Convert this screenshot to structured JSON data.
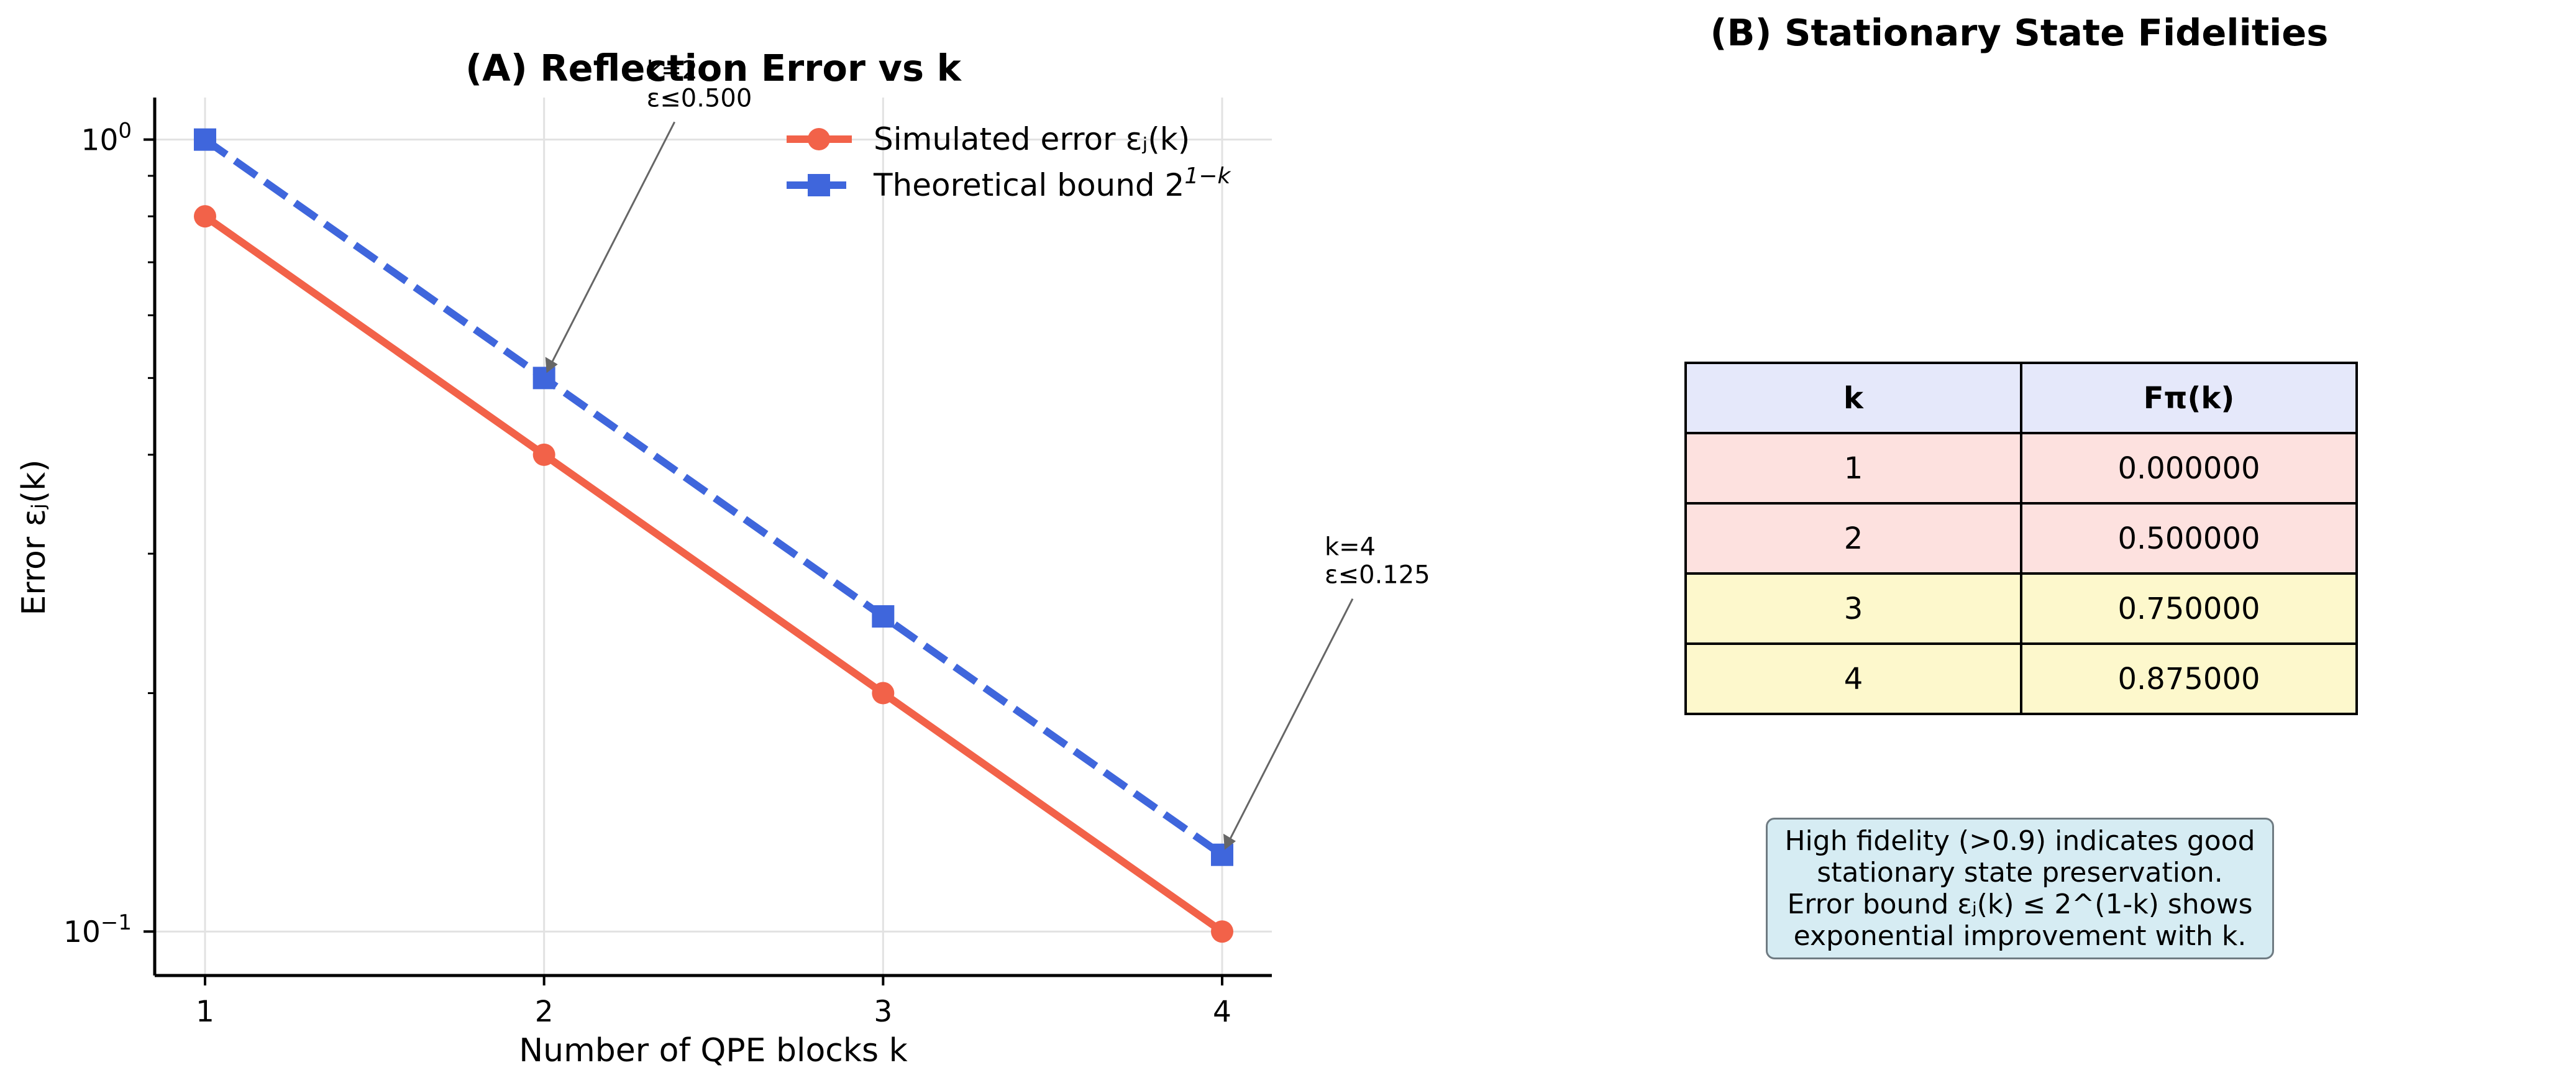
{
  "chart_data": [
    {
      "type": "line",
      "title": "(A) Reflection Error vs k",
      "xlabel": "Number of QPE blocks k",
      "ylabel": "Error εⱼ(k)",
      "x": [
        1,
        2,
        3,
        4
      ],
      "x_ticks": [
        "1",
        "2",
        "3",
        "4"
      ],
      "y_scale": "log",
      "ylim": [
        0.088,
        1.13
      ],
      "y_ticks": [
        {
          "value": 1.0,
          "base": "10",
          "exp": "0"
        },
        {
          "value": 0.1,
          "base": "10",
          "exp": "−1"
        }
      ],
      "grid": true,
      "legend_position": "top-right",
      "series": [
        {
          "name": "Simulated error εⱼ(k)",
          "values": [
            0.8,
            0.4,
            0.2,
            0.1
          ],
          "color": "#f26249",
          "style": "solid",
          "marker": "circle"
        },
        {
          "name_base": "Theoretical bound 2",
          "name_sup": "1−k",
          "values": [
            1.0,
            0.5,
            0.25,
            0.125
          ],
          "color": "#3f66dc",
          "style": "dashed",
          "marker": "square"
        }
      ],
      "annotations": [
        {
          "x": 2,
          "y": 0.5,
          "lines": [
            "k=2",
            "ε≤0.500"
          ]
        },
        {
          "x": 4,
          "y": 0.125,
          "lines": [
            "k=4",
            "ε≤0.125"
          ]
        }
      ]
    },
    {
      "type": "table",
      "title": "(B) Stationary State Fidelities",
      "columns": [
        "k",
        "Fπ(k)"
      ],
      "rows": [
        {
          "cells": [
            "1",
            "0.000000"
          ],
          "color": "#fde1df"
        },
        {
          "cells": [
            "2",
            "0.500000"
          ],
          "color": "#fde1df"
        },
        {
          "cells": [
            "3",
            "0.750000"
          ],
          "color": "#fdf8cc"
        },
        {
          "cells": [
            "4",
            "0.875000"
          ],
          "color": "#fdf8cc"
        }
      ]
    }
  ],
  "note_lines": [
    "High fidelity (>0.9) indicates good",
    "stationary state preservation.",
    "Error bound εⱼ(k) ≤ 2^(1-k) shows",
    "exponential improvement with k."
  ]
}
